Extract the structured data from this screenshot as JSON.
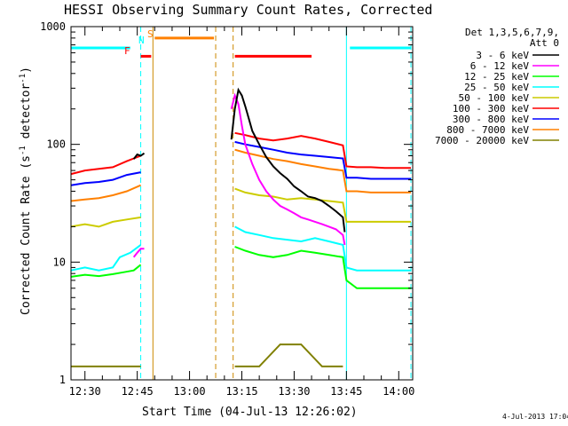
{
  "chart_data": {
    "type": "line",
    "title": "HESSI Observing Summary Count Rates, Corrected",
    "xlabel": "Start Time (04-Jul-13 12:26:02)",
    "ylabel_main": "Corrected Count Rate (s",
    "ylabel_sup1": "-1",
    "ylabel_mid": " detector",
    "ylabel_sup2": "-1",
    "ylabel_end": ")",
    "xlim": [
      26,
      124
    ],
    "ylim": [
      1,
      1000
    ],
    "yscale": "log",
    "xticks": [
      {
        "t": 30,
        "label": "12:30"
      },
      {
        "t": 45,
        "label": "12:45"
      },
      {
        "t": 60,
        "label": "13:00"
      },
      {
        "t": 75,
        "label": "13:15"
      },
      {
        "t": 90,
        "label": "13:30"
      },
      {
        "t": 105,
        "label": "13:45"
      },
      {
        "t": 120,
        "label": "14:00"
      }
    ],
    "yticks": [
      {
        "v": 1,
        "label": "1"
      },
      {
        "v": 10,
        "label": "10"
      },
      {
        "v": 100,
        "label": "100"
      },
      {
        "v": 1000,
        "label": "1000"
      }
    ],
    "legend_header": [
      "Det 1,3,5,6,7,9,",
      "Att 0"
    ],
    "legend_position": "right",
    "series": [
      {
        "name": "3 - 6 keV",
        "color": "#000000",
        "segments": [
          {
            "x": [
              44,
              45,
              46,
              47
            ],
            "y": [
              75,
              82,
              80,
              84
            ]
          },
          {
            "x": [
              72,
              73,
              74,
              75,
              76,
              77,
              78,
              80,
              82,
              84,
              86,
              88,
              90,
              92,
              94,
              96,
              98,
              100,
              102,
              104,
              104.5
            ],
            "y": [
              110,
              200,
              290,
              260,
              210,
              165,
              130,
              100,
              78,
              65,
              57,
              51,
              44,
              40,
              36,
              35,
              33,
              30,
              27,
              24,
              18
            ]
          }
        ]
      },
      {
        "name": "6 - 12 keV",
        "color": "#ff00ff",
        "segments": [
          {
            "x": [
              44,
              45,
              46,
              47
            ],
            "y": [
              11,
              12,
              13,
              13
            ]
          },
          {
            "x": [
              72,
              73,
              74,
              75,
              76,
              78,
              80,
              82,
              84,
              86,
              88,
              90,
              92,
              94,
              96,
              98,
              100,
              102,
              104,
              104.5
            ],
            "y": [
              200,
              260,
              220,
              145,
              100,
              68,
              50,
              40,
              34,
              30,
              28,
              26,
              24,
              23,
              22,
              21,
              20,
              19,
              17,
              14
            ]
          }
        ]
      },
      {
        "name": "12 - 25 keV",
        "color": "#00ff00",
        "segments": [
          {
            "x": [
              26,
              30,
              34,
              38,
              41,
              44,
              46
            ],
            "y": [
              7.5,
              7.8,
              7.6,
              7.9,
              8.2,
              8.5,
              9.5
            ]
          },
          {
            "x": [
              73,
              76,
              80,
              84,
              88,
              92,
              96,
              100,
              104,
              105,
              108,
              112,
              116,
              120,
              123.5
            ],
            "y": [
              13.5,
              12.5,
              11.5,
              11,
              11.5,
              12.5,
              12,
              11.5,
              11,
              7,
              6,
              6,
              6,
              6,
              6
            ]
          }
        ]
      },
      {
        "name": "25 - 50 keV",
        "color": "#00ffff",
        "segments": [
          {
            "x": [
              26,
              30,
              34,
              38,
              40,
              43,
              46
            ],
            "y": [
              8.5,
              9,
              8.5,
              9,
              11,
              12,
              14
            ]
          },
          {
            "x": [
              73,
              76,
              80,
              84,
              88,
              92,
              96,
              100,
              104,
              105,
              108,
              112,
              116,
              120,
              123.5
            ],
            "y": [
              20,
              18,
              17,
              16,
              15.5,
              15,
              16,
              15,
              14,
              9,
              8.5,
              8.5,
              8.5,
              8.5,
              8.5
            ]
          }
        ]
      },
      {
        "name": "50 - 100 keV",
        "color": "#cccc00",
        "segments": [
          {
            "x": [
              26,
              30,
              34,
              38,
              42,
              46
            ],
            "y": [
              20,
              21,
              20,
              22,
              23,
              24
            ]
          },
          {
            "x": [
              73,
              76,
              80,
              84,
              88,
              92,
              96,
              100,
              104,
              105,
              108,
              112,
              116,
              120,
              123.5
            ],
            "y": [
              42,
              39,
              37,
              36,
              34,
              35,
              34,
              33,
              32,
              22,
              22,
              22,
              22,
              22,
              22
            ]
          }
        ]
      },
      {
        "name": "100 - 300 keV",
        "color": "#ff0000",
        "segments": [
          {
            "x": [
              26,
              30,
              34,
              38,
              42,
              46
            ],
            "y": [
              56,
              60,
              62,
              64,
              72,
              80
            ]
          },
          {
            "x": [
              73,
              76,
              80,
              84,
              88,
              92,
              96,
              100,
              104,
              105,
              108,
              112,
              116,
              120,
              123.5
            ],
            "y": [
              125,
              120,
              112,
              108,
              112,
              118,
              112,
              105,
              98,
              65,
              64,
              64,
              63,
              63,
              63
            ]
          }
        ]
      },
      {
        "name": "300 - 800 keV",
        "color": "#0000ff",
        "segments": [
          {
            "x": [
              26,
              30,
              34,
              38,
              42,
              46
            ],
            "y": [
              45,
              47,
              48,
              50,
              55,
              58
            ]
          },
          {
            "x": [
              73,
              76,
              80,
              84,
              88,
              92,
              96,
              100,
              104,
              105,
              108,
              112,
              116,
              120,
              123.5
            ],
            "y": [
              105,
              100,
              95,
              90,
              85,
              82,
              80,
              78,
              76,
              52,
              52,
              51,
              51,
              51,
              51
            ]
          }
        ]
      },
      {
        "name": "800 - 7000 keV",
        "color": "#ff8000",
        "segments": [
          {
            "x": [
              26,
              30,
              34,
              38,
              42,
              46
            ],
            "y": [
              33,
              34,
              35,
              37,
              40,
              45
            ]
          },
          {
            "x": [
              73,
              76,
              80,
              84,
              88,
              92,
              96,
              100,
              104,
              105,
              108,
              112,
              116,
              120,
              123.5
            ],
            "y": [
              90,
              85,
              80,
              75,
              72,
              68,
              65,
              62,
              60,
              40,
              40,
              39,
              39,
              39,
              39
            ]
          }
        ]
      },
      {
        "name": "7000 - 20000 keV",
        "color": "#808000",
        "segments": [
          {
            "x": [
              26,
              30,
              34,
              38,
              42,
              46
            ],
            "y": [
              1.3,
              1.3,
              1.3,
              1.3,
              1.3,
              1.3
            ]
          },
          {
            "x": [
              73,
              80,
              86,
              92,
              98,
              104
            ],
            "y": [
              1.3,
              1.3,
              2.0,
              2.0,
              1.3,
              1.3
            ]
          }
        ]
      }
    ],
    "annotations": [
      {
        "text": "F",
        "color": "#ff0000"
      },
      {
        "text": "N",
        "color": "#00ffff"
      },
      {
        "text": "S",
        "color": "#ff8000"
      }
    ],
    "flag_bars": [
      {
        "color": "#00ffff",
        "x0": 26,
        "x1": 43,
        "y": 660
      },
      {
        "color": "#ff0000",
        "x0": 46,
        "x1": 49,
        "y": 560
      },
      {
        "color": "#ff8000",
        "x0": 50,
        "x1": 67,
        "y": 800
      },
      {
        "color": "#ff0000",
        "x0": 73,
        "x1": 95,
        "y": 560
      },
      {
        "color": "#00ffff",
        "x0": 106,
        "x1": 123.5,
        "y": 660
      }
    ],
    "vlines": [
      {
        "x": 46,
        "color": "#00ffff",
        "dashed": true
      },
      {
        "x": 49.5,
        "color": "#cc8800",
        "dashed": false
      },
      {
        "x": 72.5,
        "color": "#cc8800",
        "dashed": true
      },
      {
        "x": 67.5,
        "color": "#cc8800",
        "dashed": true
      },
      {
        "x": 105,
        "color": "#00ffff",
        "dashed": false
      },
      {
        "x": 123.5,
        "color": "#00ffff",
        "dashed": true
      }
    ],
    "grid": false
  },
  "timestamp": "4-Jul-2013 17:04"
}
